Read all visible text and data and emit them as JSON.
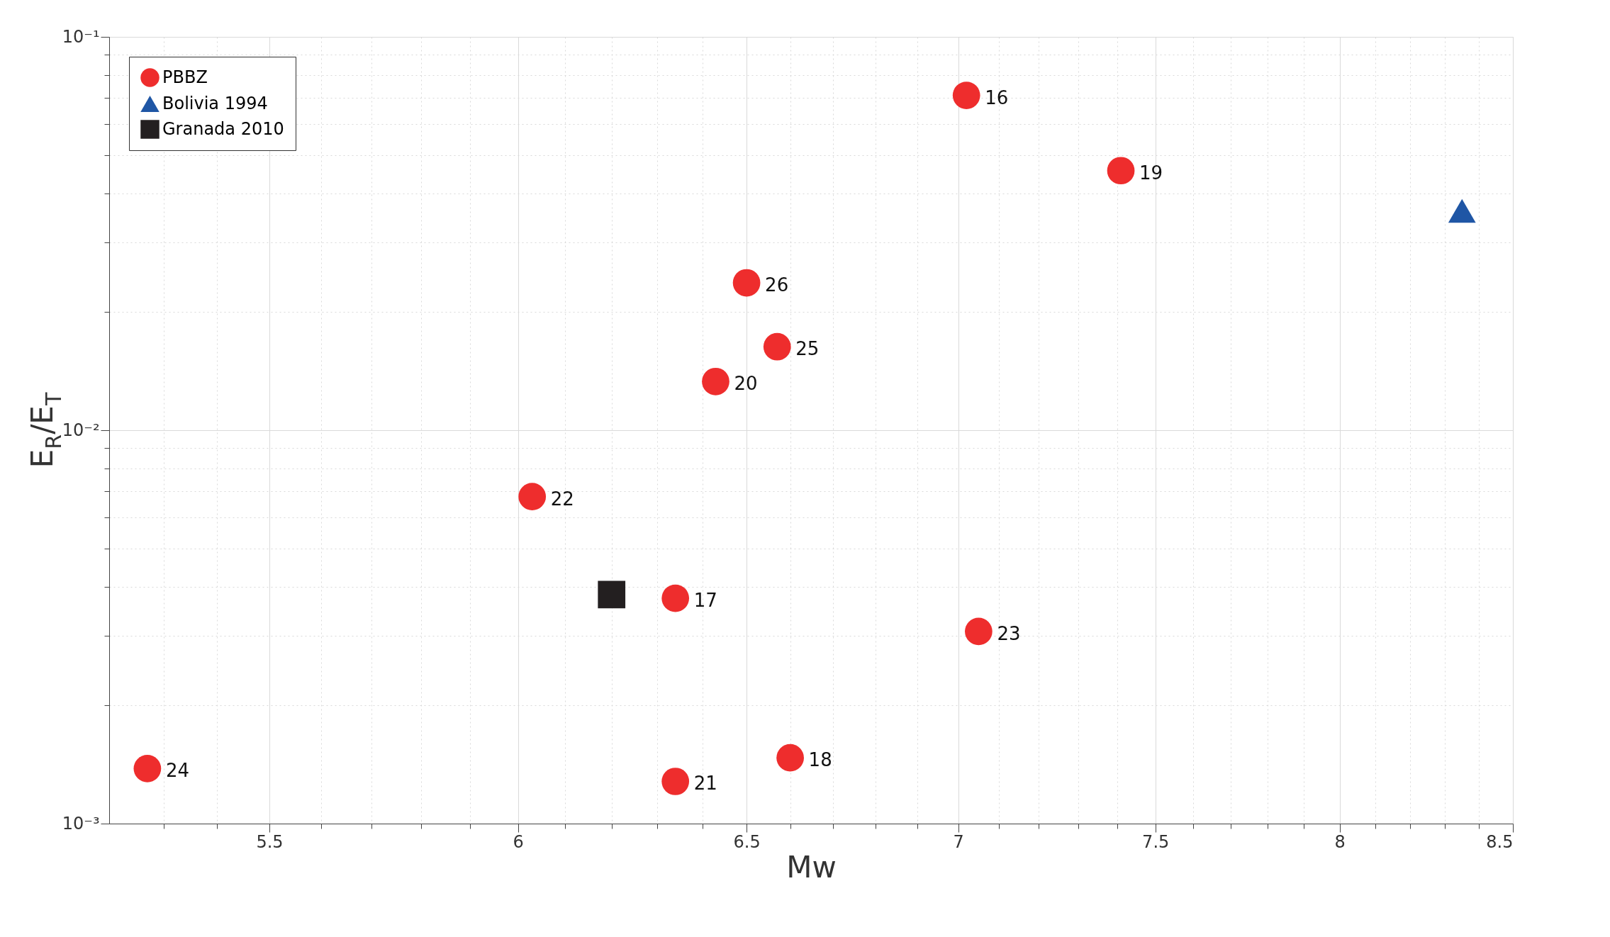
{
  "chart_data": {
    "type": "scatter",
    "xlabel": "Mw",
    "ylabel": "E$_{R}$/E$_{T}$",
    "log": "xy",
    "grid": true,
    "legend": "top left",
    "xlim": [
      5.2,
      8.5
    ],
    "xticks": [
      {
        "value": 5.3,
        "label": null
      },
      {
        "value": 5.4,
        "label": null
      },
      5.5,
      {
        "value": 5.6,
        "label": null
      },
      {
        "value": 5.7,
        "label": null
      },
      {
        "value": 5.8,
        "label": null
      },
      {
        "value": 5.9,
        "label": null
      },
      6,
      {
        "value": 6.1,
        "label": null
      },
      {
        "value": 6.2,
        "label": null
      },
      {
        "value": 6.3,
        "label": null
      },
      {
        "value": 6.4,
        "label": null
      },
      6.5,
      {
        "value": 6.6,
        "label": null
      },
      {
        "value": 6.7,
        "label": null
      },
      {
        "value": 6.8,
        "label": null
      },
      {
        "value": 6.9,
        "label": null
      },
      7,
      {
        "value": 7.1,
        "label": null
      },
      {
        "value": 7.2,
        "label": null
      },
      {
        "value": 7.3,
        "label": null
      },
      {
        "value": 7.4,
        "label": null
      },
      7.5,
      {
        "value": 7.6,
        "label": null
      },
      {
        "value": 7.7,
        "label": null
      },
      {
        "value": 7.8,
        "label": null
      },
      {
        "value": 7.9,
        "label": null
      },
      8,
      {
        "value": 8.1,
        "label": null
      },
      {
        "value": 8.2,
        "label": null
      },
      {
        "value": 8.3,
        "label": null
      },
      {
        "value": 8.4,
        "label": null
      },
      8.5
    ],
    "ylim": [
      0.001,
      0.1
    ],
    "yticks": [
      {
        "value": 0.001,
        "label": "10⁻³"
      },
      {
        "value": 0.002,
        "label": null
      },
      {
        "value": 0.003,
        "label": null
      },
      {
        "value": 0.004,
        "label": null
      },
      {
        "value": 0.005,
        "label": null
      },
      {
        "value": 0.006,
        "label": null
      },
      {
        "value": 0.007,
        "label": null
      },
      {
        "value": 0.008,
        "label": null
      },
      {
        "value": 0.009,
        "label": null
      },
      {
        "value": 0.01,
        "label": "10⁻²"
      },
      {
        "value": 0.02,
        "label": null
      },
      {
        "value": 0.03,
        "label": null
      },
      {
        "value": 0.04,
        "label": null
      },
      {
        "value": 0.05,
        "label": null
      },
      {
        "value": 0.06,
        "label": null
      },
      {
        "value": 0.07,
        "label": null
      },
      {
        "value": 0.08,
        "label": null
      },
      {
        "value": 0.09,
        "label": null
      },
      {
        "value": 0.1,
        "label": "10⁻¹"
      }
    ],
    "annotations": [
      {
        "text": "16",
        "x": 7.02,
        "y": 0.071
      },
      {
        "text": "17",
        "x": 6.34,
        "y": 0.00374
      },
      {
        "text": "18",
        "x": 6.6,
        "y": 0.00147
      },
      {
        "text": "19",
        "x": 7.41,
        "y": 0.0457
      },
      {
        "text": "20",
        "x": 6.43,
        "y": 0.0133
      },
      {
        "text": "21",
        "x": 6.34,
        "y": 0.00128
      },
      {
        "text": "22",
        "x": 6.03,
        "y": 0.00678
      },
      {
        "text": "23",
        "x": 7.05,
        "y": 0.00308
      },
      {
        "text": "24",
        "x": 5.27,
        "y": 0.00138
      },
      {
        "text": "25",
        "x": 6.57,
        "y": 0.0163
      },
      {
        "text": "26",
        "x": 6.5,
        "y": 0.0237
      }
    ],
    "series": [
      {
        "name": "PBBZ",
        "color": "#ee2d2d",
        "marker": "circle",
        "x": [
          7.02,
          6.34,
          6.6,
          7.41,
          6.43,
          6.34,
          6.03,
          7.05,
          5.27,
          6.57,
          6.5
        ],
        "values": [
          0.071,
          0.00374,
          0.00147,
          0.0457,
          0.0133,
          0.00128,
          0.00678,
          0.00308,
          0.00138,
          0.0163,
          0.0237
        ]
      },
      {
        "name": "Bolivia 1994",
        "color": "#1f56a5",
        "marker": "triangle",
        "x": [
          8.35
        ],
        "values": [
          0.0361
        ]
      },
      {
        "name": "Granada 2010",
        "color": "#231f20",
        "marker": "square",
        "x": [
          6.2
        ],
        "values": [
          0.00382
        ]
      }
    ]
  }
}
